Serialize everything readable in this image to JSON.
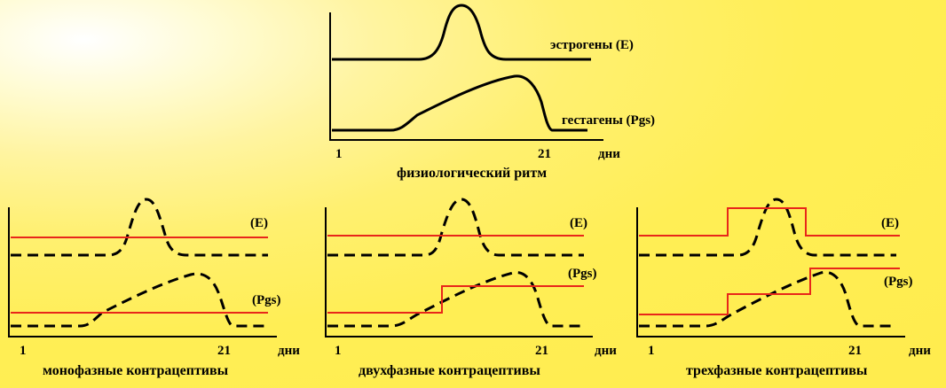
{
  "top": {
    "caption": "физиологический ритм",
    "estrogen_label": "эстрогены (E)",
    "gestagen_label": "гестагены (Pgs)",
    "tick_start": "1",
    "tick_end": "21",
    "unit": "дни"
  },
  "panels": [
    {
      "caption": "монофазные контрацептивы",
      "estrogen_label": "(E)",
      "gestagen_label": "(Pgs)",
      "tick_start": "1",
      "tick_end": "21",
      "unit": "дни"
    },
    {
      "caption": "двухфазные контрацептивы",
      "estrogen_label": "(E)",
      "gestagen_label": "(Pgs)",
      "tick_start": "1",
      "tick_end": "21",
      "unit": "дни"
    },
    {
      "caption": "трехфазные контрацептивы",
      "estrogen_label": "(E)",
      "gestagen_label": "(Pgs)",
      "tick_start": "1",
      "tick_end": "21",
      "unit": "дни"
    }
  ],
  "colors": {
    "background": "#ffee55",
    "curve": "#000000",
    "dose_line": "#e8261a"
  }
}
